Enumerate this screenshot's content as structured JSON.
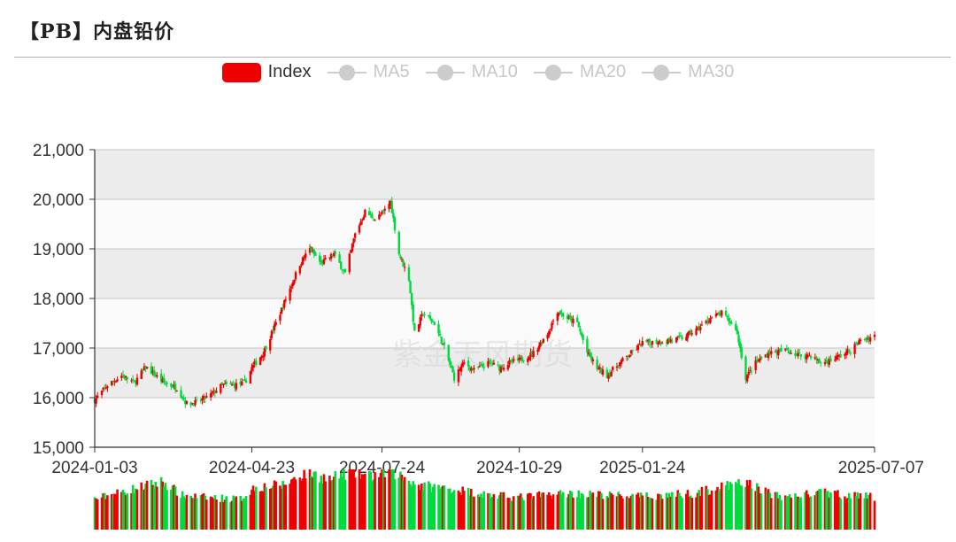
{
  "page": {
    "title": "【PB】内盘铅价",
    "watermark": "紫金天风期货"
  },
  "legend": [
    {
      "label": "Index",
      "active": true,
      "color": "#ee0000"
    },
    {
      "label": "MA5",
      "active": false,
      "color": "#cccccc"
    },
    {
      "label": "MA10",
      "active": false,
      "color": "#cccccc"
    },
    {
      "label": "MA20",
      "active": false,
      "color": "#cccccc"
    },
    {
      "label": "MA30",
      "active": false,
      "color": "#cccccc"
    }
  ],
  "chart_data": {
    "type": "candlestick",
    "title": "【PB】内盘铅价",
    "series_name": "Index",
    "ylim": [
      15000,
      21000
    ],
    "y_ticks": [
      "15,000",
      "16,000",
      "17,000",
      "18,000",
      "19,000",
      "20,000",
      "21,000"
    ],
    "y_tick_values": [
      15000,
      16000,
      17000,
      18000,
      19000,
      20000,
      21000
    ],
    "x_tick_labels": [
      "2024-01-03",
      "2024-04-23",
      "2024-07-24",
      "2024-10-29",
      "2025-01-24",
      "2025-07-07"
    ],
    "x_range": [
      "2024-01-03",
      "2025-07-07"
    ],
    "grid": true,
    "up_color": "#ee0000",
    "down_color": "#00da3c",
    "close_path": [
      [
        "2024-01-03",
        15950
      ],
      [
        "2024-01-12",
        16250
      ],
      [
        "2024-01-22",
        16450
      ],
      [
        "2024-01-31",
        16300
      ],
      [
        "2024-02-08",
        16620
      ],
      [
        "2024-02-21",
        16300
      ],
      [
        "2024-03-01",
        16200
      ],
      [
        "2024-03-08",
        15880
      ],
      [
        "2024-03-15",
        15900
      ],
      [
        "2024-03-25",
        16050
      ],
      [
        "2024-04-02",
        16250
      ],
      [
        "2024-04-11",
        16250
      ],
      [
        "2024-04-18",
        16300
      ],
      [
        "2024-04-23",
        16600
      ],
      [
        "2024-05-01",
        16900
      ],
      [
        "2024-05-10",
        17500
      ],
      [
        "2024-05-20",
        18200
      ],
      [
        "2024-05-27",
        18700
      ],
      [
        "2024-06-03",
        19000
      ],
      [
        "2024-06-11",
        18700
      ],
      [
        "2024-06-20",
        18900
      ],
      [
        "2024-06-28",
        18500
      ],
      [
        "2024-07-05",
        19300
      ],
      [
        "2024-07-12",
        19750
      ],
      [
        "2024-07-19",
        19600
      ],
      [
        "2024-07-24",
        19700
      ],
      [
        "2024-07-30",
        19950
      ],
      [
        "2024-08-05",
        18900
      ],
      [
        "2024-08-12",
        18400
      ],
      [
        "2024-08-16",
        17300
      ],
      [
        "2024-08-22",
        17700
      ],
      [
        "2024-08-30",
        17500
      ],
      [
        "2024-09-06",
        17000
      ],
      [
        "2024-09-13",
        16400
      ],
      [
        "2024-09-20",
        16700
      ],
      [
        "2024-09-27",
        16550
      ],
      [
        "2024-10-08",
        16700
      ],
      [
        "2024-10-15",
        16600
      ],
      [
        "2024-10-22",
        16700
      ],
      [
        "2024-10-29",
        16750
      ],
      [
        "2024-11-08",
        16900
      ],
      [
        "2024-11-18",
        17300
      ],
      [
        "2024-11-25",
        17750
      ],
      [
        "2024-12-02",
        17600
      ],
      [
        "2024-12-09",
        17500
      ],
      [
        "2024-12-16",
        16900
      ],
      [
        "2024-12-23",
        16600
      ],
      [
        "2024-12-30",
        16450
      ],
      [
        "2025-01-08",
        16700
      ],
      [
        "2025-01-16",
        16900
      ],
      [
        "2025-01-24",
        17100
      ],
      [
        "2025-02-10",
        17150
      ],
      [
        "2025-02-21",
        17200
      ],
      [
        "2025-03-05",
        17400
      ],
      [
        "2025-03-13",
        17600
      ],
      [
        "2025-03-21",
        17700
      ],
      [
        "2025-03-31",
        17400
      ],
      [
        "2025-04-03",
        17000
      ],
      [
        "2025-04-07",
        16400
      ],
      [
        "2025-04-14",
        16700
      ],
      [
        "2025-04-23",
        16900
      ],
      [
        "2025-05-06",
        16950
      ],
      [
        "2025-05-15",
        16850
      ],
      [
        "2025-05-23",
        16850
      ],
      [
        "2025-05-30",
        16700
      ],
      [
        "2025-06-06",
        16750
      ],
      [
        "2025-06-13",
        16850
      ],
      [
        "2025-06-20",
        16950
      ],
      [
        "2025-06-27",
        17150
      ],
      [
        "2025-07-07",
        17250
      ]
    ],
    "volume_path": [
      [
        "2024-01-03",
        0.52
      ],
      [
        "2024-02-20",
        0.82
      ],
      [
        "2024-03-05",
        0.58
      ],
      [
        "2024-03-20",
        0.55
      ],
      [
        "2024-04-15",
        0.52
      ],
      [
        "2024-04-25",
        0.72
      ],
      [
        "2024-05-15",
        0.76
      ],
      [
        "2024-06-01",
        0.98
      ],
      [
        "2024-06-18",
        0.85
      ],
      [
        "2024-07-01",
        1.0
      ],
      [
        "2024-07-15",
        0.9
      ],
      [
        "2024-07-30",
        1.0
      ],
      [
        "2024-08-20",
        0.75
      ],
      [
        "2024-09-10",
        0.7
      ],
      [
        "2024-10-10",
        0.58
      ],
      [
        "2024-10-29",
        0.55
      ],
      [
        "2024-12-01",
        0.62
      ],
      [
        "2025-01-24",
        0.56
      ],
      [
        "2025-03-01",
        0.62
      ],
      [
        "2025-04-07",
        0.8
      ],
      [
        "2025-05-01",
        0.55
      ],
      [
        "2025-06-01",
        0.63
      ],
      [
        "2025-07-07",
        0.55
      ]
    ]
  }
}
